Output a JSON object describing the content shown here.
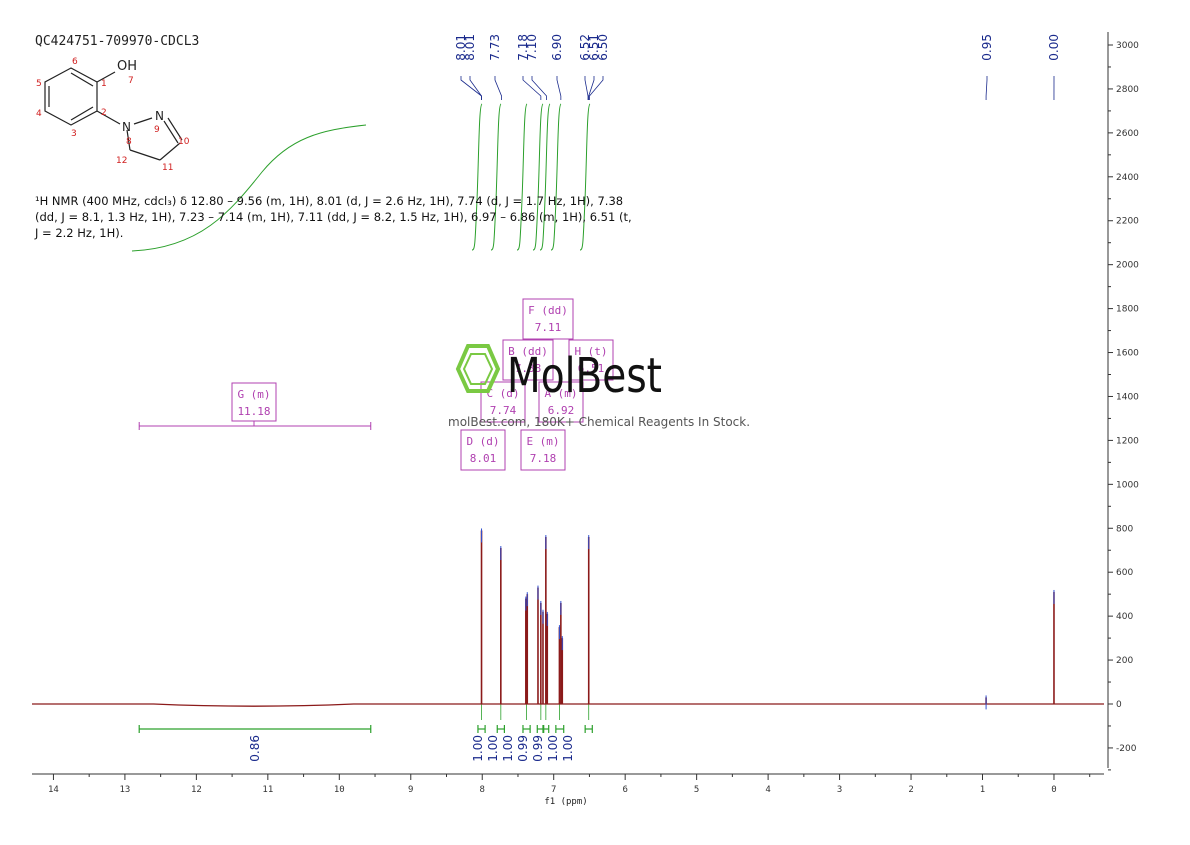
{
  "header": {
    "sample_id": "QC424751-709970-CDCL3"
  },
  "structure": {
    "oh_label": "OH",
    "atom_numbers": [
      "1",
      "2",
      "3",
      "4",
      "5",
      "6",
      "7",
      "8",
      "9",
      "10",
      "11",
      "12"
    ],
    "n_labels": [
      "N",
      "N"
    ]
  },
  "description": {
    "line1": "¹H NMR (400 MHz, cdcl₃) δ 12.80 – 9.56 (m, 1H), 8.01 (d, J = 2.6 Hz, 1H), 7.74 (d, J = 1.7 Hz, 1H), 7.38",
    "line2": "(dd, J = 8.1, 1.3 Hz, 1H), 7.23 – 7.14 (m, 1H), 7.11 (dd, J = 8.2, 1.5 Hz, 1H), 6.97 – 6.86 (m, 1H), 6.51 (t,",
    "line3": "J = 2.2 Hz, 1H)."
  },
  "watermark": {
    "brand": "MolBest",
    "tagline": "molBest.com, 180K+ Chemical Reagents In Stock."
  },
  "colors": {
    "spectrum": "#8b1a1a",
    "peak_labels": "#1a2a8c",
    "integral_curve": "#2ca02c",
    "multiplet_boxes": "#b040b0",
    "logo": "#7ac943"
  },
  "chart_data": {
    "type": "line",
    "xlabel": "f1 (ppm)",
    "x_axis": {
      "range": [
        14.3,
        -0.7
      ],
      "reversed": true,
      "ticks": [
        "14",
        "13",
        "12",
        "11",
        "10",
        "9",
        "8",
        "7",
        "6",
        "5",
        "4",
        "3",
        "2",
        "1",
        "0"
      ]
    },
    "y_axis": {
      "range": [
        -320,
        3080
      ],
      "position": "right",
      "ticks": [
        "3000",
        "2800",
        "2600",
        "2400",
        "2200",
        "2000",
        "1800",
        "1600",
        "1400",
        "1200",
        "1000",
        "800",
        "600",
        "400",
        "200",
        "0",
        "-200"
      ]
    },
    "peak_labels": [
      "8.01",
      "8.01",
      "7.73",
      "7.18",
      "7.10",
      "6.90",
      "6.52",
      "6.51",
      "6.50",
      "0.95",
      "0.00"
    ],
    "peak_ppm": [
      8.01,
      8.01,
      7.73,
      7.18,
      7.1,
      6.9,
      6.52,
      6.51,
      6.5,
      0.95,
      0.0
    ],
    "peaks": [
      {
        "ppm": 8.01,
        "height": 790
      },
      {
        "ppm": 7.74,
        "height": 710
      },
      {
        "ppm": 7.39,
        "height": 480
      },
      {
        "ppm": 7.37,
        "height": 500
      },
      {
        "ppm": 7.22,
        "height": 530
      },
      {
        "ppm": 7.18,
        "height": 460
      },
      {
        "ppm": 7.15,
        "height": 420
      },
      {
        "ppm": 7.11,
        "height": 760
      },
      {
        "ppm": 7.09,
        "height": 410
      },
      {
        "ppm": 6.92,
        "height": 350
      },
      {
        "ppm": 6.9,
        "height": 460
      },
      {
        "ppm": 6.88,
        "height": 300
      },
      {
        "ppm": 6.51,
        "height": 760
      },
      {
        "ppm": 0.95,
        "height": 30
      },
      {
        "ppm": 0.0,
        "height": 510
      }
    ],
    "integrals": [
      {
        "from": 12.8,
        "to": 9.56,
        "label": "0.86",
        "center": 11.18
      },
      {
        "from": 8.06,
        "to": 7.96,
        "label": "1.00",
        "center": 8.01
      },
      {
        "from": 7.79,
        "to": 7.69,
        "label": "1.00",
        "center": 7.74
      },
      {
        "from": 7.43,
        "to": 7.33,
        "label": "1.00",
        "center": 7.38
      },
      {
        "from": 7.23,
        "to": 7.14,
        "label": "0.99",
        "center": 7.18
      },
      {
        "from": 7.15,
        "to": 7.07,
        "label": "0.99",
        "center": 7.11
      },
      {
        "from": 6.97,
        "to": 6.86,
        "label": "1.00",
        "center": 6.92
      },
      {
        "from": 6.56,
        "to": 6.46,
        "label": "1.00",
        "center": 6.51
      }
    ],
    "multiplets": [
      {
        "name": "F (dd)",
        "value": "7.11"
      },
      {
        "name": "B (dd)",
        "value": "7.38"
      },
      {
        "name": "H (t)",
        "value": "6.51"
      },
      {
        "name": "G (m)",
        "value": "11.18"
      },
      {
        "name": "C (d)",
        "value": "7.74"
      },
      {
        "name": "A (m)",
        "value": "6.92"
      },
      {
        "name": "D (d)",
        "value": "8.01"
      },
      {
        "name": "E (m)",
        "value": "7.18"
      }
    ],
    "grid": false
  }
}
